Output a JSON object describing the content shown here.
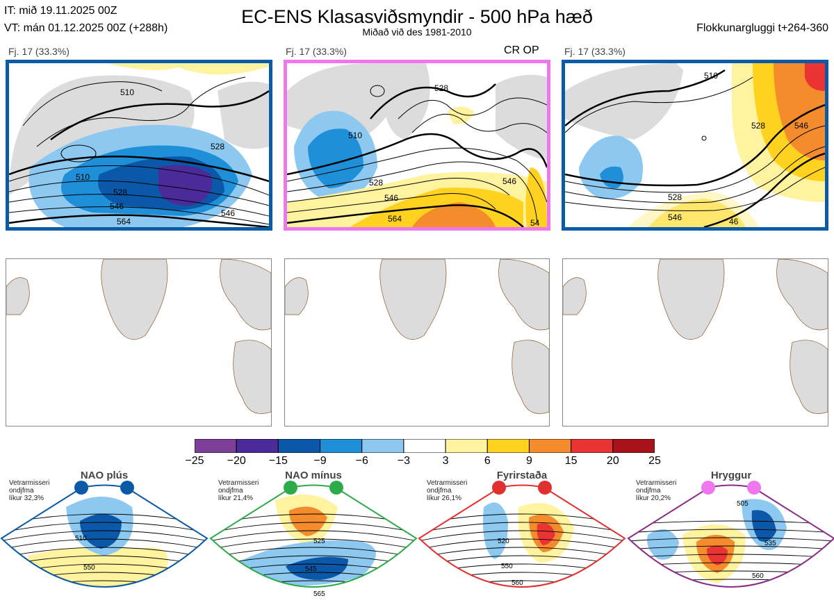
{
  "header": {
    "it_line": "IT: mið 19.11.2025 00Z",
    "vt_line": "VT: mán 01.12.2025 00Z  (+288h)",
    "title": "EC-ENS Klasasviðsmyndir - 500 hPa hæð",
    "subtitle": "Miðað við des 1981-2010",
    "window": "Flokkunargluggi t+264-360"
  },
  "panels": [
    {
      "label": "Fj. 17 (33.3%)",
      "tag": "",
      "contours": [
        "510",
        "528",
        "546",
        "564",
        "510",
        "528",
        "546"
      ]
    },
    {
      "label": "Fj. 17 (33.3%)",
      "tag": "CR OP",
      "contours": [
        "528",
        "510",
        "528",
        "546",
        "564",
        "546",
        "54"
      ]
    },
    {
      "label": "Fj. 17 (33.3%)",
      "tag": "",
      "contours": [
        "510",
        "528",
        "546",
        "528",
        "546",
        "46"
      ]
    }
  ],
  "colors": {
    "panel_frame_blue": "#0b5aa6",
    "panel_frame_pink": "#ee77ee",
    "land": "#dcdcdc",
    "coast": "#8a5a2b"
  },
  "chart_data": {
    "type": "heatmap",
    "title": "EC-ENS Klasasviðsmyndir - 500 hPa hæð",
    "subtitle": "Miðað við des 1981-2010",
    "colorbar": {
      "ticks": [
        "−25",
        "−20",
        "−15",
        "−9",
        "−6",
        "−3",
        "3",
        "6",
        "9",
        "15",
        "20",
        "25"
      ],
      "colors": [
        "#7d3f98",
        "#4b2a9a",
        "#0b58a8",
        "#1f8fd8",
        "#8cc8ef",
        "#ffffff",
        "#fff3a0",
        "#ffd21f",
        "#f48b2c",
        "#ea3333",
        "#a8121a"
      ]
    },
    "clusters": [
      {
        "count": 17,
        "percent": "33.3%"
      },
      {
        "count": 17,
        "percent": "33.3%"
      },
      {
        "count": 17,
        "percent": "33.3%"
      }
    ],
    "regimes": [
      {
        "name": "NAO plús",
        "note": "Vetrarmisseri\nondjfma\nlíkur 32,3%",
        "color": "#0b5aa6",
        "dot": "#0b5aa6",
        "contours": [
          "510",
          "550"
        ]
      },
      {
        "name": "NAO mínus",
        "note": "Vetrarmisseri\nondjfma\nlíkur 21,4%",
        "color": "#2eaa4a",
        "dot": "#2eaa4a",
        "contours": [
          "525",
          "545",
          "565"
        ]
      },
      {
        "name": "Fyrirstaða",
        "note": "Vetrarmisseri\nondjfma\nlíkur 26,1%",
        "color": "#e03030",
        "dot": "#e03030",
        "contours": [
          "520",
          "550",
          "560"
        ]
      },
      {
        "name": "Hryggur",
        "note": "Vetrarmisseri\nondjfma\nlíkur 20,2%",
        "color": "#8a2b8a",
        "dot": "#ee77ee",
        "contours": [
          "505",
          "535",
          "560"
        ]
      }
    ]
  }
}
